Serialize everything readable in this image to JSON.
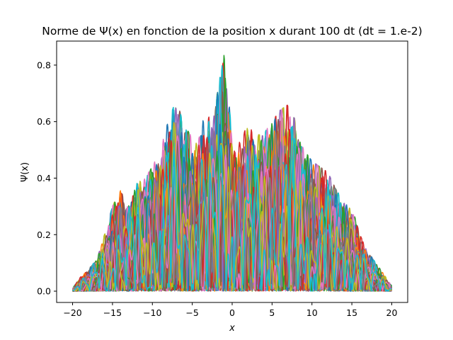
{
  "chart_data": {
    "type": "line",
    "title": "Norme de Ψ(x) en fonction de la position x durant 100 dt (dt = 1.e-2)",
    "xlabel": "x",
    "ylabel": "Ψ(x)",
    "xlim": [
      -22,
      22
    ],
    "ylim": [
      -0.04,
      0.885
    ],
    "xticks": [
      "−20",
      "−15",
      "−10",
      "−5",
      "0",
      "5",
      "10",
      "15",
      "20"
    ],
    "xtick_values": [
      -20,
      -15,
      -10,
      -5,
      0,
      5,
      10,
      15,
      20
    ],
    "yticks": [
      "0.0",
      "0.2",
      "0.4",
      "0.6",
      "0.8"
    ],
    "ytick_values": [
      0.0,
      0.2,
      0.4,
      0.6,
      0.8
    ],
    "grid": false,
    "legend": "none",
    "series_count": 100,
    "colors": [
      "#1f77b4",
      "#ff7f0e",
      "#2ca02c",
      "#d62728",
      "#9467bd",
      "#8c564b",
      "#e377c2",
      "#7f7f7f",
      "#bcbd22",
      "#17becf"
    ],
    "envelope": {
      "x": [
        -20,
        -19,
        -18,
        -17,
        -16,
        -15,
        -14,
        -13,
        -12,
        -11,
        -10,
        -9,
        -8,
        -7,
        -6,
        -5,
        -4,
        -3,
        -2,
        -1.5,
        -1,
        0,
        1,
        2,
        3,
        4,
        5,
        6,
        7,
        8,
        9,
        10,
        11,
        12,
        13,
        14,
        15,
        16,
        17,
        18,
        19,
        20
      ],
      "y": [
        0.01,
        0.05,
        0.08,
        0.11,
        0.2,
        0.3,
        0.36,
        0.32,
        0.38,
        0.4,
        0.44,
        0.52,
        0.6,
        0.68,
        0.58,
        0.55,
        0.6,
        0.62,
        0.66,
        0.82,
        0.84,
        0.6,
        0.52,
        0.6,
        0.55,
        0.56,
        0.6,
        0.64,
        0.66,
        0.6,
        0.5,
        0.46,
        0.44,
        0.42,
        0.36,
        0.32,
        0.3,
        0.2,
        0.14,
        0.1,
        0.06,
        0.02
      ]
    }
  }
}
